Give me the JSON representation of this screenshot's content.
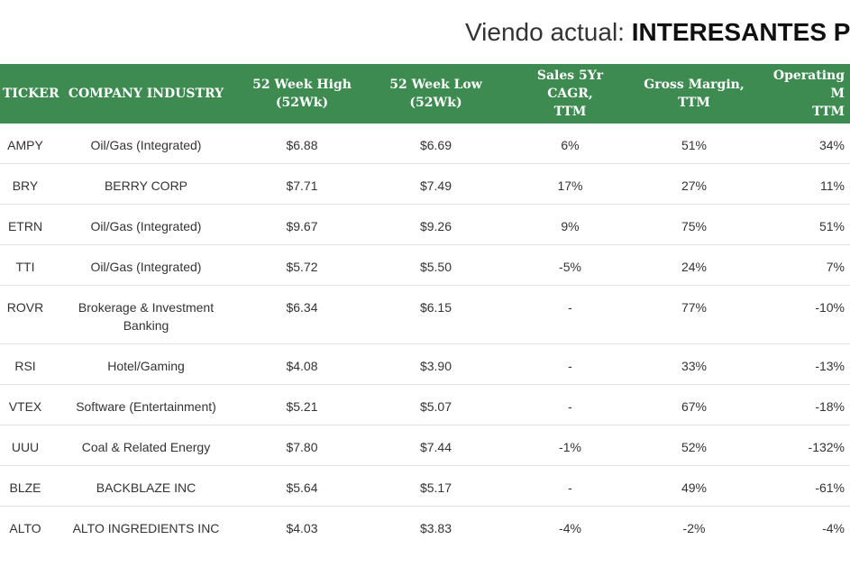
{
  "title": {
    "prefix": "Viendo actual:",
    "emphasis": "INTERESANTES P"
  },
  "table": {
    "headers": [
      [
        "TICKER"
      ],
      [
        "COMPANY INDUSTRY"
      ],
      [
        "52 Week High",
        "(52Wk)"
      ],
      [
        "52 Week Low",
        "(52Wk)"
      ],
      [
        "Sales 5Yr CAGR,",
        "TTM"
      ],
      [
        "Gross Margin,",
        "TTM"
      ],
      [
        "Operating M",
        "TTM"
      ]
    ],
    "rows": [
      [
        "AMPY",
        "Oil/Gas (Integrated)",
        "$6.88",
        "$6.69",
        "6%",
        "51%",
        "34%"
      ],
      [
        "BRY",
        "BERRY CORP",
        "$7.71",
        "$7.49",
        "17%",
        "27%",
        "11%"
      ],
      [
        "ETRN",
        "Oil/Gas (Integrated)",
        "$9.67",
        "$9.26",
        "9%",
        "75%",
        "51%"
      ],
      [
        "TTI",
        "Oil/Gas (Integrated)",
        "$5.72",
        "$5.50",
        "-5%",
        "24%",
        "7%"
      ],
      [
        "ROVR",
        "Brokerage & Investment Banking",
        "$6.34",
        "$6.15",
        "-",
        "77%",
        "-10%"
      ],
      [
        "RSI",
        "Hotel/Gaming",
        "$4.08",
        "$3.90",
        "-",
        "33%",
        "-13%"
      ],
      [
        "VTEX",
        "Software (Entertainment)",
        "$5.21",
        "$5.07",
        "-",
        "67%",
        "-18%"
      ],
      [
        "UUU",
        "Coal & Related Energy",
        "$7.80",
        "$7.44",
        "-1%",
        "52%",
        "-132%"
      ],
      [
        "BLZE",
        "BACKBLAZE INC",
        "$5.64",
        "$5.17",
        "-",
        "49%",
        "-61%"
      ],
      [
        "ALTO",
        "ALTO INGREDIENTS INC",
        "$4.03",
        "$3.83",
        "-4%",
        "-2%",
        "-4%"
      ]
    ]
  }
}
